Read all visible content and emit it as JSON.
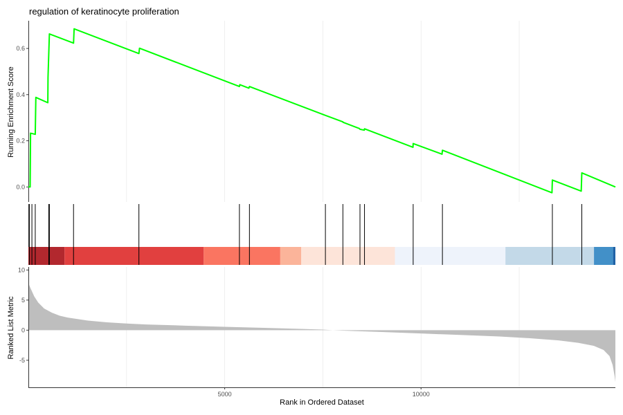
{
  "chart_data": {
    "type": "line",
    "title": "regulation of keratinocyte proliferation",
    "x_label": "Rank in Ordered Dataset",
    "x_range": [
      0,
      14950
    ],
    "x_ticks": [
      5000,
      10000
    ],
    "grid": true,
    "colors": {
      "es_line": "#00ff00",
      "hit_line": "#000000",
      "metric_area": "#bebebe",
      "panel_axis": "#333333"
    },
    "running_es": {
      "ylabel": "Running Enrichment Score",
      "ylim": [
        -0.065,
        0.72
      ],
      "y_ticks": [
        0.0,
        0.2,
        0.4,
        0.6
      ],
      "y_tick_labels": [
        "0.0",
        "0.2",
        "0.4",
        "0.6"
      ],
      "points": [
        [
          0,
          0.0
        ],
        [
          45,
          0.0
        ],
        [
          55,
          0.233
        ],
        [
          175,
          0.228
        ],
        [
          190,
          0.388
        ],
        [
          495,
          0.365
        ],
        [
          500,
          0.475
        ],
        [
          535,
          0.663
        ],
        [
          1150,
          0.623
        ],
        [
          1165,
          0.685
        ],
        [
          2815,
          0.578
        ],
        [
          2830,
          0.601
        ],
        [
          5375,
          0.435
        ],
        [
          5385,
          0.443
        ],
        [
          5615,
          0.428
        ],
        [
          5630,
          0.435
        ],
        [
          7565,
          0.31
        ],
        [
          8010,
          0.282
        ],
        [
          8015,
          0.28
        ],
        [
          8430,
          0.253
        ],
        [
          8445,
          0.25
        ],
        [
          8555,
          0.246
        ],
        [
          8560,
          0.252
        ],
        [
          9795,
          0.172
        ],
        [
          9800,
          0.188
        ],
        [
          10535,
          0.142
        ],
        [
          10545,
          0.159
        ],
        [
          13335,
          -0.025
        ],
        [
          13345,
          0.03
        ],
        [
          14080,
          -0.018
        ],
        [
          14095,
          0.061
        ],
        [
          14950,
          0.0
        ]
      ]
    },
    "hits": {
      "positions": [
        25,
        90,
        175,
        520,
        535,
        1150,
        2815,
        5375,
        5630,
        7565,
        8010,
        8445,
        8560,
        9800,
        10545,
        13345,
        14095
      ]
    },
    "color_bands": [
      {
        "from": 0,
        "to": 920,
        "color": "#b2282e"
      },
      {
        "from": 920,
        "to": 4465,
        "color": "#e1403f"
      },
      {
        "from": 4465,
        "to": 6415,
        "color": "#fa7561"
      },
      {
        "from": 6415,
        "to": 6950,
        "color": "#fbb49a"
      },
      {
        "from": 6950,
        "to": 9335,
        "color": "#fde4d9"
      },
      {
        "from": 9335,
        "to": 12150,
        "color": "#eef3fb"
      },
      {
        "from": 12150,
        "to": 14405,
        "color": "#c3d9e8"
      },
      {
        "from": 14405,
        "to": 14890,
        "color": "#4290c8"
      },
      {
        "from": 14890,
        "to": 14950,
        "color": "#1f62a6"
      }
    ],
    "ranked_metric": {
      "ylabel": "Ranked List Metric",
      "ylim": [
        -9.5,
        10.5
      ],
      "y_ticks": [
        -5,
        0,
        5,
        10
      ],
      "y_tick_labels": [
        "-5",
        "0",
        "5",
        "10"
      ],
      "points": [
        [
          0,
          8.5
        ],
        [
          20,
          7.5
        ],
        [
          80,
          6.6
        ],
        [
          150,
          5.6
        ],
        [
          250,
          4.6
        ],
        [
          400,
          3.6
        ],
        [
          600,
          2.9
        ],
        [
          800,
          2.4
        ],
        [
          1000,
          2.1
        ],
        [
          1500,
          1.6
        ],
        [
          2000,
          1.3
        ],
        [
          2500,
          1.1
        ],
        [
          3000,
          0.95
        ],
        [
          4000,
          0.75
        ],
        [
          5000,
          0.55
        ],
        [
          6000,
          0.38
        ],
        [
          7000,
          0.2
        ],
        [
          7500,
          0.1
        ],
        [
          7750,
          0.0
        ],
        [
          8000,
          -0.08
        ],
        [
          9000,
          -0.3
        ],
        [
          10000,
          -0.55
        ],
        [
          11000,
          -0.8
        ],
        [
          12000,
          -1.05
        ],
        [
          12800,
          -1.35
        ],
        [
          13500,
          -1.7
        ],
        [
          14000,
          -2.1
        ],
        [
          14400,
          -2.6
        ],
        [
          14650,
          -3.3
        ],
        [
          14800,
          -4.3
        ],
        [
          14880,
          -5.8
        ],
        [
          14930,
          -7.6
        ],
        [
          14950,
          -8.6
        ]
      ]
    }
  }
}
